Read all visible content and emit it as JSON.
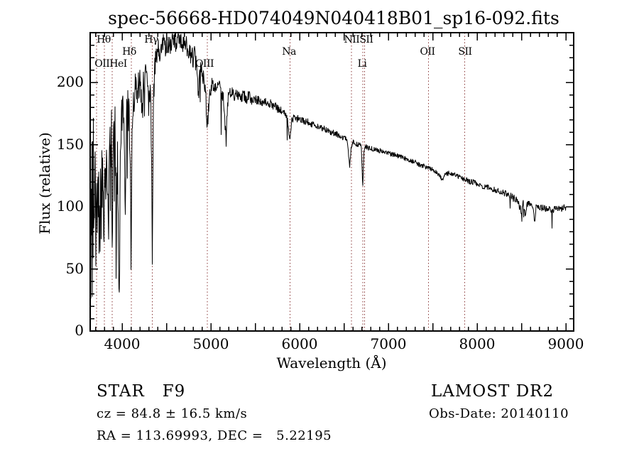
{
  "title": "spec-56668-HD074049N040418B01_sp16-092.fits",
  "footer": {
    "class_label": "STAR   F9",
    "cz": "cz = 84.8 ± 16.5 km/s",
    "radec": "RA = 113.69993, DEC =   5.22195",
    "survey": "LAMOST DR2",
    "obsdate": "Obs-Date: 20140110"
  },
  "chart_data": {
    "type": "line",
    "title": "spec-56668-HD074049N040418B01_sp16-092.fits",
    "xlabel": "Wavelength (Å)",
    "ylabel": "Flux (relative)",
    "xlim": [
      3640,
      9088
    ],
    "ylim": [
      0,
      240
    ],
    "grid": false,
    "x_ticks": [
      4000,
      5000,
      6000,
      7000,
      8000,
      9000
    ],
    "y_ticks": [
      0,
      50,
      100,
      150,
      200
    ],
    "minor_tick_step_x": 100,
    "major_tick_step_x": 500,
    "minor_tick_step_y": 10,
    "major_tick_step_y": 50,
    "line_color": "#000000",
    "marker_color": "#8b3a3a",
    "frame_color": "#000000",
    "line_markers": [
      3712,
      3798,
      3889,
      4102,
      4340,
      4959,
      5890,
      6583,
      6710,
      6730,
      7450,
      7860
    ],
    "line_labels": [
      {
        "text": "Hθ",
        "lambda": 3792,
        "row": 1
      },
      {
        "text": "Hγ",
        "lambda": 4328,
        "row": 1
      },
      {
        "text": "NIISII",
        "lambda": 6664,
        "row": 1
      },
      {
        "text": "Hδ",
        "lambda": 4080,
        "row": 2
      },
      {
        "text": "Na",
        "lambda": 5880,
        "row": 2
      },
      {
        "text": "OII",
        "lambda": 7440,
        "row": 2
      },
      {
        "text": "SII",
        "lambda": 7864,
        "row": 2
      },
      {
        "text": "OIIHeI",
        "lambda": 3872,
        "row": 3
      },
      {
        "text": "OIII",
        "lambda": 4928,
        "row": 3,
        "behind": true
      },
      {
        "text": "Li",
        "lambda": 6704,
        "row": 3
      }
    ],
    "series": {
      "name": "flux",
      "lambda_start": 3648,
      "lambda_end": 9001,
      "sample_step": 4,
      "noise_seed": 42,
      "clip": [
        1,
        239
      ],
      "anchors": [
        [
          3648,
          15
        ],
        [
          3652,
          120
        ],
        [
          3656,
          40
        ],
        [
          3660,
          135
        ],
        [
          3664,
          60
        ],
        [
          3668,
          150
        ],
        [
          3672,
          80
        ],
        [
          3676,
          160
        ],
        [
          3680,
          50
        ],
        [
          3686,
          120
        ],
        [
          3692,
          95
        ],
        [
          3698,
          140
        ],
        [
          3704,
          75
        ],
        [
          3710,
          115
        ],
        [
          3716,
          85
        ],
        [
          3722,
          130
        ],
        [
          3728,
          100
        ],
        [
          3734,
          135
        ],
        [
          3740,
          95
        ],
        [
          3746,
          128
        ],
        [
          3752,
          85
        ],
        [
          3758,
          125
        ],
        [
          3764,
          105
        ],
        [
          3770,
          135
        ],
        [
          3776,
          100
        ],
        [
          3782,
          130
        ],
        [
          3790,
          110
        ],
        [
          3798,
          95
        ],
        [
          3806,
          135
        ],
        [
          3814,
          118
        ],
        [
          3822,
          140
        ],
        [
          3830,
          105
        ],
        [
          3838,
          135
        ],
        [
          3846,
          90
        ],
        [
          3854,
          130
        ],
        [
          3862,
          145
        ],
        [
          3870,
          115
        ],
        [
          3880,
          150
        ],
        [
          3889,
          85
        ],
        [
          3896,
          145
        ],
        [
          3904,
          158
        ],
        [
          3912,
          130
        ],
        [
          3920,
          155
        ],
        [
          3928,
          120
        ],
        [
          3933,
          45
        ],
        [
          3940,
          110
        ],
        [
          3946,
          140
        ],
        [
          3952,
          100
        ],
        [
          3958,
          60
        ],
        [
          3964,
          42
        ],
        [
          3970,
          38
        ],
        [
          3976,
          95
        ],
        [
          3984,
          150
        ],
        [
          3992,
          170
        ],
        [
          4000,
          178
        ],
        [
          4010,
          168
        ],
        [
          4020,
          185
        ],
        [
          4030,
          120
        ],
        [
          4038,
          90
        ],
        [
          4046,
          160
        ],
        [
          4056,
          180
        ],
        [
          4066,
          188
        ],
        [
          4076,
          170
        ],
        [
          4086,
          155
        ],
        [
          4094,
          130
        ],
        [
          4098,
          80
        ],
        [
          4101,
          42
        ],
        [
          4105,
          95
        ],
        [
          4112,
          160
        ],
        [
          4120,
          178
        ],
        [
          4130,
          188
        ],
        [
          4140,
          192
        ],
        [
          4152,
          196
        ],
        [
          4164,
          188
        ],
        [
          4176,
          194
        ],
        [
          4188,
          200
        ],
        [
          4200,
          196
        ],
        [
          4212,
          188
        ],
        [
          4227,
          172
        ],
        [
          4240,
          196
        ],
        [
          4254,
          204
        ],
        [
          4268,
          208
        ],
        [
          4282,
          212
        ],
        [
          4296,
          190
        ],
        [
          4308,
          178
        ],
        [
          4320,
          196
        ],
        [
          4330,
          150
        ],
        [
          4336,
          95
        ],
        [
          4340,
          46
        ],
        [
          4345,
          120
        ],
        [
          4352,
          185
        ],
        [
          4362,
          210
        ],
        [
          4374,
          214
        ],
        [
          4386,
          218
        ],
        [
          4398,
          222
        ],
        [
          4412,
          225
        ],
        [
          4426,
          220
        ],
        [
          4440,
          227
        ],
        [
          4455,
          231
        ],
        [
          4470,
          235
        ],
        [
          4485,
          229
        ],
        [
          4500,
          233
        ],
        [
          4515,
          227
        ],
        [
          4530,
          234
        ],
        [
          4545,
          230
        ],
        [
          4560,
          236
        ],
        [
          4575,
          231
        ],
        [
          4590,
          235
        ],
        [
          4605,
          230
        ],
        [
          4620,
          234
        ],
        [
          4635,
          237
        ],
        [
          4650,
          232
        ],
        [
          4665,
          235
        ],
        [
          4680,
          229
        ],
        [
          4695,
          233
        ],
        [
          4710,
          227
        ],
        [
          4725,
          231
        ],
        [
          4740,
          225
        ],
        [
          4755,
          229
        ],
        [
          4770,
          222
        ],
        [
          4785,
          226
        ],
        [
          4800,
          219
        ],
        [
          4815,
          222
        ],
        [
          4830,
          214
        ],
        [
          4845,
          210
        ],
        [
          4861,
          188
        ],
        [
          4875,
          212
        ],
        [
          4890,
          209
        ],
        [
          4905,
          207
        ],
        [
          4920,
          204
        ],
        [
          4935,
          196
        ],
        [
          4950,
          180
        ],
        [
          4960,
          166
        ],
        [
          4972,
          178
        ],
        [
          4985,
          188
        ],
        [
          5000,
          194
        ],
        [
          5015,
          198
        ],
        [
          5030,
          195
        ],
        [
          5045,
          199
        ],
        [
          5060,
          197
        ],
        [
          5080,
          199
        ],
        [
          5100,
          196
        ],
        [
          5120,
          193
        ],
        [
          5140,
          189
        ],
        [
          5160,
          165
        ],
        [
          5172,
          152
        ],
        [
          5182,
          172
        ],
        [
          5195,
          188
        ],
        [
          5210,
          192
        ],
        [
          5228,
          190
        ],
        [
          5246,
          193
        ],
        [
          5264,
          190
        ],
        [
          5282,
          192
        ],
        [
          5300,
          190
        ],
        [
          5325,
          192
        ],
        [
          5350,
          188
        ],
        [
          5375,
          190
        ],
        [
          5400,
          187
        ],
        [
          5430,
          189
        ],
        [
          5460,
          186
        ],
        [
          5490,
          188
        ],
        [
          5520,
          185
        ],
        [
          5550,
          186
        ],
        [
          5580,
          183
        ],
        [
          5610,
          184
        ],
        [
          5640,
          182
        ],
        [
          5670,
          183
        ],
        [
          5700,
          180
        ],
        [
          5730,
          181
        ],
        [
          5760,
          178
        ],
        [
          5790,
          177
        ],
        [
          5820,
          176
        ],
        [
          5850,
          173
        ],
        [
          5870,
          168
        ],
        [
          5890,
          150
        ],
        [
          5902,
          164
        ],
        [
          5915,
          170
        ],
        [
          5930,
          171
        ],
        [
          5950,
          170
        ],
        [
          5975,
          171
        ],
        [
          6000,
          170
        ],
        [
          6050,
          169
        ],
        [
          6100,
          168
        ],
        [
          6150,
          166
        ],
        [
          6200,
          165
        ],
        [
          6250,
          163
        ],
        [
          6300,
          162
        ],
        [
          6350,
          160
        ],
        [
          6400,
          159
        ],
        [
          6440,
          157
        ],
        [
          6480,
          156
        ],
        [
          6520,
          155
        ],
        [
          6545,
          149
        ],
        [
          6563,
          130
        ],
        [
          6578,
          146
        ],
        [
          6595,
          152
        ],
        [
          6620,
          151
        ],
        [
          6645,
          150
        ],
        [
          6670,
          150
        ],
        [
          6695,
          149
        ],
        [
          6712,
          115
        ],
        [
          6725,
          146
        ],
        [
          6740,
          148
        ],
        [
          6760,
          148
        ],
        [
          6780,
          147
        ],
        [
          6800,
          147
        ],
        [
          6830,
          146
        ],
        [
          6860,
          146
        ],
        [
          6890,
          145
        ],
        [
          6920,
          145
        ],
        [
          6950,
          144
        ],
        [
          6980,
          144
        ],
        [
          7010,
          143
        ],
        [
          7040,
          142
        ],
        [
          7070,
          142
        ],
        [
          7100,
          141
        ],
        [
          7140,
          140
        ],
        [
          7180,
          139
        ],
        [
          7220,
          138
        ],
        [
          7260,
          137
        ],
        [
          7300,
          136
        ],
        [
          7340,
          134
        ],
        [
          7380,
          133
        ],
        [
          7420,
          132
        ],
        [
          7460,
          131
        ],
        [
          7500,
          130
        ],
        [
          7540,
          128
        ],
        [
          7580,
          125
        ],
        [
          7605,
          122
        ],
        [
          7625,
          124
        ],
        [
          7650,
          126
        ],
        [
          7680,
          127
        ],
        [
          7710,
          126
        ],
        [
          7740,
          126
        ],
        [
          7770,
          125
        ],
        [
          7800,
          124
        ],
        [
          7830,
          123
        ],
        [
          7860,
          122
        ],
        [
          7890,
          121
        ],
        [
          7920,
          120
        ],
        [
          7950,
          120
        ],
        [
          7980,
          119
        ],
        [
          8010,
          118
        ],
        [
          8040,
          117
        ],
        [
          8070,
          116
        ],
        [
          8100,
          116
        ],
        [
          8140,
          115
        ],
        [
          8180,
          114
        ],
        [
          8220,
          113
        ],
        [
          8260,
          112
        ],
        [
          8300,
          111
        ],
        [
          8340,
          110
        ],
        [
          8380,
          109
        ],
        [
          8420,
          107
        ],
        [
          8450,
          105
        ],
        [
          8480,
          100
        ],
        [
          8500,
          96
        ],
        [
          8515,
          104
        ],
        [
          8530,
          100
        ],
        [
          8545,
          90
        ],
        [
          8560,
          103
        ],
        [
          8580,
          102
        ],
        [
          8600,
          101
        ],
        [
          8625,
          100
        ],
        [
          8650,
          87
        ],
        [
          8665,
          100
        ],
        [
          8685,
          101
        ],
        [
          8705,
          100
        ],
        [
          8730,
          99
        ],
        [
          8755,
          100
        ],
        [
          8780,
          98
        ],
        [
          8805,
          99
        ],
        [
          8830,
          97
        ],
        [
          8855,
          96
        ],
        [
          8880,
          99
        ],
        [
          8905,
          98
        ],
        [
          8930,
          99
        ],
        [
          8955,
          98
        ],
        [
          8975,
          100
        ],
        [
          9000,
          99
        ],
        [
          9001,
          8
        ]
      ],
      "noise_profile": [
        [
          3648,
          55
        ],
        [
          3700,
          38
        ],
        [
          3800,
          30
        ],
        [
          3900,
          32
        ],
        [
          3980,
          22
        ],
        [
          4050,
          18
        ],
        [
          4150,
          15
        ],
        [
          4300,
          13
        ],
        [
          4450,
          10
        ],
        [
          4700,
          8
        ],
        [
          4950,
          8
        ],
        [
          5100,
          6
        ],
        [
          5300,
          5
        ],
        [
          5600,
          4
        ],
        [
          5900,
          3.2
        ],
        [
          6200,
          2.8
        ],
        [
          6600,
          2.2
        ],
        [
          7000,
          2
        ],
        [
          7500,
          2
        ],
        [
          8000,
          2.3
        ],
        [
          8400,
          2.6
        ],
        [
          8700,
          2.8
        ],
        [
          9000,
          2.4
        ]
      ],
      "spike_zones": [
        {
          "from": 3960,
          "to": 4450,
          "prob": 0.05,
          "depth": 70
        },
        {
          "from": 4450,
          "to": 5450,
          "prob": 0.03,
          "depth": 45
        },
        {
          "from": 5450,
          "to": 6500,
          "prob": 0.012,
          "depth": 18
        },
        {
          "from": 8250,
          "to": 8900,
          "prob": 0.03,
          "depth": 16
        }
      ]
    }
  }
}
